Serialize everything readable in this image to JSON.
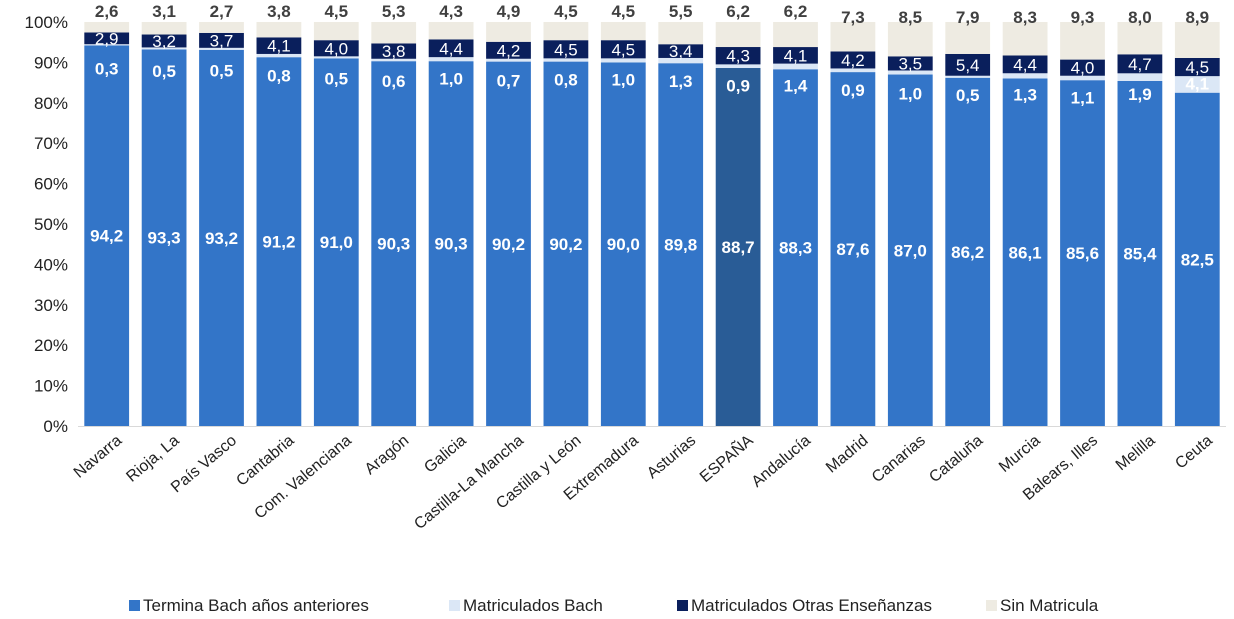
{
  "chart_data": {
    "type": "bar",
    "stacked": true,
    "normalized": true,
    "ylim": [
      0,
      100
    ],
    "yticks": [
      "0%",
      "10%",
      "20%",
      "30%",
      "40%",
      "50%",
      "60%",
      "70%",
      "80%",
      "90%",
      "100%"
    ],
    "categories": [
      "Navarra",
      "Rioja, La",
      "País Vasco",
      "Cantabria",
      "Com. Valenciana",
      "Aragón",
      "Galicia",
      "Castilla-La Mancha",
      "Castilla y León",
      "Extremadura",
      "Asturias",
      "ESPAÑA",
      "Andalucía",
      "Madrid",
      "Canarias",
      "Cataluña",
      "Murcia",
      "Balears, Illes",
      "Melilla",
      "Ceuta"
    ],
    "highlight_category": "ESPAÑA",
    "legend_position": "bottom",
    "series": [
      {
        "name": "Termina Bach años anteriores",
        "color": "#3375c8",
        "highlight_color": "#295c96",
        "label_color": "#ffffff",
        "values": [
          94.2,
          93.3,
          93.2,
          91.2,
          91.0,
          90.3,
          90.3,
          90.2,
          90.2,
          90.0,
          89.8,
          88.7,
          88.3,
          87.6,
          87.0,
          86.2,
          86.1,
          85.6,
          85.4,
          82.5
        ],
        "labels": [
          "94,2",
          "93,3",
          "93,2",
          "91,2",
          "91,0",
          "90,3",
          "90,3",
          "90,2",
          "90,2",
          "90,0",
          "89,8",
          "88,7",
          "88,3",
          "87,6",
          "87,0",
          "86,2",
          "86,1",
          "85,6",
          "85,4",
          "82,5"
        ]
      },
      {
        "name": "Matriculados Bach",
        "color": "#dbe7f6",
        "label_color": "#ffffff",
        "values": [
          0.3,
          0.5,
          0.5,
          0.8,
          0.5,
          0.6,
          1.0,
          0.7,
          0.8,
          1.0,
          1.3,
          0.9,
          1.4,
          0.9,
          1.0,
          0.5,
          1.3,
          1.1,
          1.9,
          4.1
        ],
        "labels": [
          "0,3",
          "0,5",
          "0,5",
          "0,8",
          "0,5",
          "0,6",
          "1,0",
          "0,7",
          "0,8",
          "1,0",
          "1,3",
          "0,9",
          "1,4",
          "0,9",
          "1,0",
          "0,5",
          "1,3",
          "1,1",
          "1,9",
          "4,1"
        ]
      },
      {
        "name": "Matriculados Otras Enseñanzas",
        "color": "#0a1f5c",
        "label_color": "#ffffff",
        "values": [
          2.9,
          3.2,
          3.7,
          4.1,
          4.0,
          3.8,
          4.4,
          4.2,
          4.5,
          4.5,
          3.4,
          4.3,
          4.1,
          4.2,
          3.5,
          5.4,
          4.4,
          4.0,
          4.7,
          4.5
        ],
        "labels": [
          "2,9",
          "3,2",
          "3,7",
          "4,1",
          "4,0",
          "3,8",
          "4,4",
          "4,2",
          "4,5",
          "4,5",
          "3,4",
          "4,3",
          "4,1",
          "4,2",
          "3,5",
          "5,4",
          "4,4",
          "4,0",
          "4,7",
          "4,5"
        ]
      },
      {
        "name": "Sin Matricula",
        "color": "#eeebe2",
        "label_color": "#404040",
        "values": [
          2.6,
          3.1,
          2.7,
          3.8,
          4.5,
          5.3,
          4.3,
          4.9,
          4.5,
          4.5,
          5.5,
          6.2,
          6.2,
          7.3,
          8.5,
          7.9,
          8.3,
          9.3,
          8.0,
          8.9
        ],
        "labels": [
          "2,6",
          "3,1",
          "2,7",
          "3,8",
          "4,5",
          "5,3",
          "4,3",
          "4,9",
          "4,5",
          "4,5",
          "5,5",
          "6,2",
          "6,2",
          "7,3",
          "8,5",
          "7,9",
          "8,3",
          "9,3",
          "8,0",
          "8,9"
        ]
      }
    ]
  }
}
